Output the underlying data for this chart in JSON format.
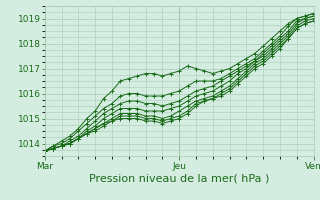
{
  "title": "Pression niveau de la mer( hPa )",
  "bg_color": "#d4ede0",
  "grid_color": "#a8ccb8",
  "line_color": "#1a6b1a",
  "x_ticks": [
    "Mar",
    "Jeu",
    "Ven"
  ],
  "x_tick_positions": [
    0.0,
    0.5,
    1.0
  ],
  "ylim": [
    1013.5,
    1019.5
  ],
  "yticks": [
    1014,
    1015,
    1016,
    1017,
    1018,
    1019
  ],
  "xlabel_fontsize": 8,
  "tick_fontsize": 6.5,
  "series": [
    [
      1013.7,
      1013.9,
      1014.1,
      1014.3,
      1014.6,
      1015.0,
      1015.3,
      1015.8,
      1016.1,
      1016.5,
      1016.6,
      1016.7,
      1016.8,
      1016.8,
      1016.7,
      1016.8,
      1016.9,
      1017.1,
      1017.0,
      1016.9,
      1016.8,
      1016.9,
      1017.0,
      1017.2,
      1017.4,
      1017.6,
      1017.9,
      1018.2,
      1018.5,
      1018.8,
      1019.0,
      1019.1,
      1019.2
    ],
    [
      1013.7,
      1013.9,
      1014.0,
      1014.2,
      1014.5,
      1014.8,
      1015.1,
      1015.4,
      1015.6,
      1015.9,
      1016.0,
      1016.0,
      1015.9,
      1015.9,
      1015.9,
      1016.0,
      1016.1,
      1016.3,
      1016.5,
      1016.5,
      1016.5,
      1016.6,
      1016.8,
      1017.0,
      1017.2,
      1017.4,
      1017.7,
      1018.0,
      1018.3,
      1018.7,
      1019.0,
      1019.1,
      1019.2
    ],
    [
      1013.7,
      1013.8,
      1013.9,
      1014.1,
      1014.3,
      1014.6,
      1014.9,
      1015.2,
      1015.4,
      1015.6,
      1015.7,
      1015.7,
      1015.6,
      1015.6,
      1015.5,
      1015.6,
      1015.7,
      1015.9,
      1016.1,
      1016.2,
      1016.3,
      1016.5,
      1016.7,
      1016.9,
      1017.1,
      1017.3,
      1017.6,
      1017.9,
      1018.2,
      1018.5,
      1018.9,
      1019.0,
      1019.1
    ],
    [
      1013.7,
      1013.8,
      1013.9,
      1014.0,
      1014.2,
      1014.5,
      1014.7,
      1015.0,
      1015.2,
      1015.4,
      1015.4,
      1015.4,
      1015.3,
      1015.3,
      1015.3,
      1015.4,
      1015.5,
      1015.7,
      1015.9,
      1016.0,
      1016.1,
      1016.3,
      1016.5,
      1016.8,
      1017.0,
      1017.3,
      1017.5,
      1017.8,
      1018.1,
      1018.4,
      1018.8,
      1019.0,
      1019.1
    ],
    [
      1013.7,
      1013.8,
      1013.9,
      1014.0,
      1014.2,
      1014.4,
      1014.6,
      1014.8,
      1015.0,
      1015.2,
      1015.2,
      1015.2,
      1015.1,
      1015.1,
      1015.0,
      1015.1,
      1015.3,
      1015.5,
      1015.7,
      1015.8,
      1015.9,
      1016.1,
      1016.3,
      1016.6,
      1016.9,
      1017.2,
      1017.4,
      1017.7,
      1018.0,
      1018.3,
      1018.7,
      1018.9,
      1019.0
    ],
    [
      1013.7,
      1013.8,
      1013.9,
      1014.0,
      1014.2,
      1014.4,
      1014.6,
      1014.8,
      1014.9,
      1015.1,
      1015.1,
      1015.1,
      1015.0,
      1015.0,
      1014.9,
      1015.0,
      1015.1,
      1015.3,
      1015.6,
      1015.7,
      1015.8,
      1016.0,
      1016.2,
      1016.5,
      1016.8,
      1017.1,
      1017.3,
      1017.6,
      1017.9,
      1018.2,
      1018.6,
      1018.8,
      1018.9
    ],
    [
      1013.7,
      1013.8,
      1013.9,
      1014.0,
      1014.2,
      1014.4,
      1014.5,
      1014.7,
      1014.9,
      1015.0,
      1015.0,
      1015.0,
      1014.9,
      1014.9,
      1014.8,
      1014.9,
      1015.0,
      1015.2,
      1015.5,
      1015.7,
      1015.8,
      1015.9,
      1016.1,
      1016.4,
      1016.7,
      1017.0,
      1017.2,
      1017.5,
      1017.8,
      1018.2,
      1018.6,
      1018.8,
      1018.9
    ]
  ]
}
